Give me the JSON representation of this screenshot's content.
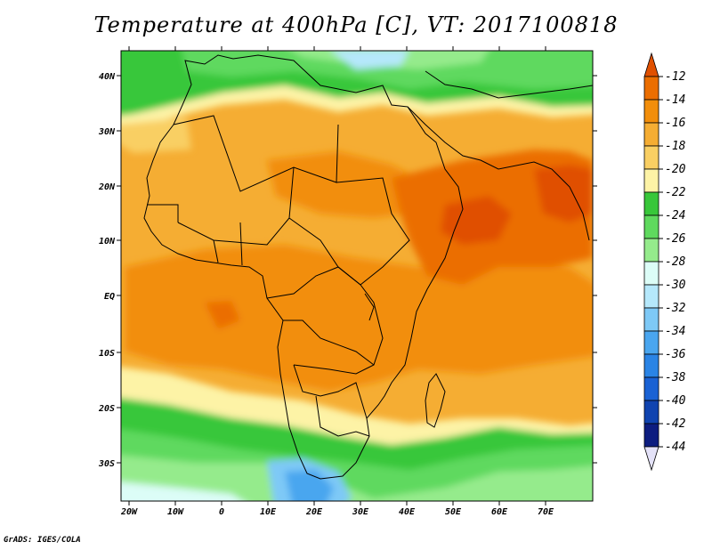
{
  "title": "Temperature at 400hPa [C], VT: 2017100818",
  "credit": "GrADS: IGES/COLA",
  "map": {
    "lon_labels": [
      "20W",
      "10W",
      "0",
      "10E",
      "20E",
      "30E",
      "40E",
      "50E",
      "60E",
      "70E"
    ],
    "lat_labels": [
      "40N",
      "30N",
      "20N",
      "10N",
      "EQ",
      "10S",
      "20S",
      "30S"
    ]
  },
  "colorbar": {
    "levels": [
      "-12",
      "-14",
      "-16",
      "-18",
      "-20",
      "-22",
      "-24",
      "-26",
      "-28",
      "-30",
      "-32",
      "-34",
      "-36",
      "-38",
      "-40",
      "-42",
      "-44"
    ],
    "colors": [
      "#e05000",
      "#eb6e00",
      "#f28e0b",
      "#f5ad33",
      "#f9cf63",
      "#fdf3a6",
      "#38c73a",
      "#5fd95e",
      "#95eb8c",
      "#dcfdf7",
      "#b5e8fb",
      "#7ec9f6",
      "#4aa6ef",
      "#2a84e5",
      "#1a62d4",
      "#1044b0",
      "#0d1d80",
      "#e4e2f8"
    ]
  }
}
